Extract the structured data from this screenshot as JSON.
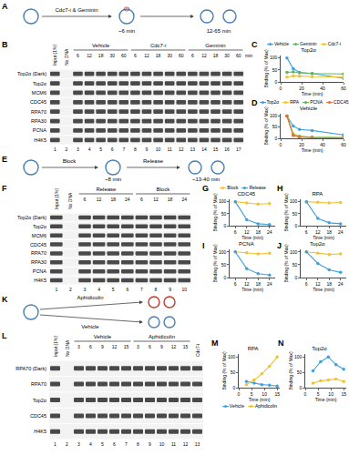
{
  "diagrams": {
    "A": {
      "letter": "A",
      "texts": [
        "Cdc7-i & Geminin",
        "~6 min",
        "12-65 min"
      ]
    },
    "E": {
      "letter": "E",
      "texts": [
        "Block",
        "Release",
        "~8 min",
        "~13-40 min"
      ]
    },
    "K": {
      "letter": "K",
      "texts": [
        "Vehicle",
        "Aphidicolin"
      ]
    }
  },
  "gels": {
    "B": {
      "letter": "B",
      "rows": [
        "Top2α (Dark)",
        "Top2α",
        "MCM6",
        "CDC45",
        "RPA70",
        "RPA30",
        "PCNA",
        "H4K5"
      ],
      "columns": [
        {
          "label": "Input (1%)"
        },
        {
          "label": "No DNA"
        },
        {
          "label": "Vehicle",
          "times": [
            6,
            12,
            18,
            30,
            60
          ]
        },
        {
          "label": "Cdc7-i",
          "times": [
            6,
            12,
            18,
            30,
            60
          ]
        },
        {
          "label": "Geminin",
          "times": [
            6,
            12,
            18,
            30,
            60
          ]
        }
      ],
      "time_unit": "min",
      "lane_numbers": [
        1,
        2,
        3,
        4,
        5,
        6,
        7,
        8,
        9,
        10,
        11,
        12,
        13,
        14,
        15,
        16,
        17
      ]
    },
    "F": {
      "letter": "F",
      "rows": [
        "Top2α (Dark)",
        "Top2α",
        "MCM6",
        "CDC45",
        "RPA70",
        "RPA30",
        "PCNA",
        "H4K5"
      ],
      "columns": [
        {
          "label": "Input (1%)"
        },
        {
          "label": "No DNA"
        },
        {
          "label": "Release",
          "times": [
            6,
            12,
            18,
            24
          ]
        },
        {
          "label": "Block",
          "times": [
            6,
            12,
            18,
            24
          ]
        }
      ],
      "lane_numbers": [
        1,
        2,
        3,
        4,
        5,
        6,
        7,
        8,
        9,
        10
      ]
    },
    "L": {
      "letter": "L",
      "rows": [
        "RPA70 (Dark)",
        "RPA70",
        "Top2α",
        "CDC45",
        "H4K5"
      ],
      "columns": [
        {
          "label": "Input (1%)"
        },
        {
          "label": "No DNA"
        },
        {
          "label": "Vehicle",
          "times": [
            3,
            6,
            9,
            12,
            15
          ]
        },
        {
          "label": "Aphidicolin",
          "times": [
            3,
            6,
            9,
            12,
            15
          ]
        },
        {
          "label": "Cdc7-i"
        }
      ],
      "lane_numbers": [
        1,
        2,
        3,
        4,
        5,
        6,
        7,
        8,
        9,
        10,
        11,
        12,
        13
      ]
    }
  },
  "chart_data": [
    {
      "type": "line",
      "label": "C",
      "title": "Top2α",
      "marker": "circle",
      "legend": "top",
      "xlabel": "Time (min)",
      "ylabel": "Binding (% of Max)",
      "x": [
        6,
        12,
        18,
        30,
        60
      ],
      "xlim": [
        0,
        60
      ],
      "xticks": [
        0,
        20,
        40,
        60
      ],
      "ylim": [
        0,
        110
      ],
      "yticks": [
        0,
        50,
        100
      ],
      "series": [
        {
          "name": "Vehicle",
          "color": "#3fa1dd",
          "values": [
            100,
            55,
            40,
            35,
            15
          ]
        },
        {
          "name": "Geminin",
          "color": "#5cb85c",
          "values": [
            40,
            42,
            38,
            35,
            33
          ]
        },
        {
          "name": "Cdc7-i",
          "color": "#f2c232",
          "values": [
            20,
            25,
            24,
            22,
            20
          ]
        }
      ]
    },
    {
      "type": "line",
      "label": "D",
      "title": "Vehicle",
      "marker": "circle",
      "legend": "top",
      "xlabel": "Time (min)",
      "ylabel": "Binding (% of Max)",
      "x": [
        6,
        12,
        18,
        30,
        60
      ],
      "xlim": [
        0,
        60
      ],
      "xticks": [
        0,
        20,
        40,
        60
      ],
      "ylim": [
        0,
        110
      ],
      "yticks": [
        0,
        50,
        100
      ],
      "series": [
        {
          "name": "Top2α",
          "color": "#3fa1dd",
          "values": [
            100,
            55,
            40,
            35,
            15
          ]
        },
        {
          "name": "RPA",
          "color": "#f2c232",
          "values": [
            100,
            20,
            10,
            5,
            3
          ]
        },
        {
          "name": "PCNA",
          "color": "#5cb85c",
          "values": [
            100,
            15,
            8,
            5,
            3
          ]
        },
        {
          "name": "CDC45",
          "color": "#e8703a",
          "values": [
            100,
            12,
            5,
            3,
            2
          ]
        }
      ]
    },
    {
      "type": "line",
      "label": "G",
      "title": "CDC45",
      "marker": "circle",
      "legend": "top",
      "xlabel": "Time (min)",
      "ylabel": "Binding (% of Max)",
      "x": [
        6,
        12,
        18,
        24
      ],
      "xlim": [
        3,
        27
      ],
      "xticks": [
        6,
        12,
        18,
        24
      ],
      "ylim": [
        0,
        110
      ],
      "yticks": [
        0,
        50,
        100
      ],
      "series": [
        {
          "name": "Block",
          "color": "#f2c232",
          "values": [
            100,
            95,
            90,
            92
          ]
        },
        {
          "name": "Release",
          "color": "#3fa1dd",
          "values": [
            100,
            25,
            8,
            5
          ]
        }
      ]
    },
    {
      "type": "line",
      "label": "H",
      "title": "RPA",
      "marker": "circle",
      "xlabel": "Time (min)",
      "ylabel": "Binding (% of Max)",
      "x": [
        6,
        12,
        18,
        24
      ],
      "xlim": [
        3,
        27
      ],
      "xticks": [
        6,
        12,
        18,
        24
      ],
      "ylim": [
        0,
        110
      ],
      "yticks": [
        0,
        50,
        100
      ],
      "series": [
        {
          "name": "Block",
          "color": "#f2c232",
          "values": [
            100,
            98,
            95,
            97
          ]
        },
        {
          "name": "Release",
          "color": "#3fa1dd",
          "values": [
            100,
            30,
            12,
            8
          ]
        }
      ]
    },
    {
      "type": "line",
      "label": "I",
      "title": "PCNA",
      "marker": "circle",
      "xlabel": "Time (min)",
      "ylabel": "Binding (% of Max)",
      "x": [
        6,
        12,
        18,
        24
      ],
      "xlim": [
        3,
        27
      ],
      "xticks": [
        6,
        12,
        18,
        24
      ],
      "ylim": [
        0,
        110
      ],
      "yticks": [
        0,
        50,
        100
      ],
      "series": [
        {
          "name": "Block",
          "color": "#f2c232",
          "values": [
            100,
            97,
            92,
            95
          ]
        },
        {
          "name": "Release",
          "color": "#3fa1dd",
          "values": [
            100,
            35,
            15,
            10
          ]
        }
      ]
    },
    {
      "type": "line",
      "label": "J",
      "title": "Top2α",
      "marker": "circle",
      "xlabel": "Time (min)",
      "ylabel": "Binding (% of Max)",
      "x": [
        6,
        12,
        18,
        24
      ],
      "xlim": [
        3,
        27
      ],
      "xticks": [
        6,
        12,
        18,
        24
      ],
      "ylim": [
        0,
        110
      ],
      "yticks": [
        0,
        50,
        100
      ],
      "series": [
        {
          "name": "Block",
          "color": "#f2c232",
          "values": [
            100,
            95,
            90,
            92
          ]
        },
        {
          "name": "Release",
          "color": "#3fa1dd",
          "values": [
            100,
            55,
            30,
            20
          ]
        }
      ]
    },
    {
      "type": "line",
      "label": "M",
      "title": "RPA",
      "marker": "circle",
      "legend": "bottom",
      "xlabel": "Time (min)",
      "ylabel": "Binding (% of Max)",
      "x": [
        3,
        6,
        9,
        12,
        15
      ],
      "xlim": [
        0,
        16
      ],
      "xticks": [
        0,
        5,
        10,
        15
      ],
      "ylim": [
        0,
        110
      ],
      "yticks": [
        0,
        50,
        100
      ],
      "series": [
        {
          "name": "Vehicle",
          "color": "#3fa1dd",
          "values": [
            20,
            15,
            10,
            8,
            5
          ]
        },
        {
          "name": "Aphidicolin",
          "color": "#f2c232",
          "values": [
            10,
            25,
            45,
            70,
            100
          ]
        }
      ]
    },
    {
      "type": "line",
      "label": "N",
      "title": "Top2α",
      "marker": "circle",
      "xlabel": "Time (min)",
      "ylabel": "Binding (% of Max)",
      "x": [
        3,
        6,
        9,
        12,
        15
      ],
      "xlim": [
        0,
        16
      ],
      "xticks": [
        0,
        5,
        10,
        15
      ],
      "ylim": [
        0,
        110
      ],
      "yticks": [
        0,
        50,
        100
      ],
      "series": [
        {
          "name": "Vehicle",
          "color": "#3fa1dd",
          "values": [
            55,
            85,
            100,
            75,
            60
          ]
        },
        {
          "name": "Aphidicolin",
          "color": "#f2c232",
          "values": [
            15,
            22,
            25,
            28,
            20
          ]
        }
      ]
    }
  ]
}
